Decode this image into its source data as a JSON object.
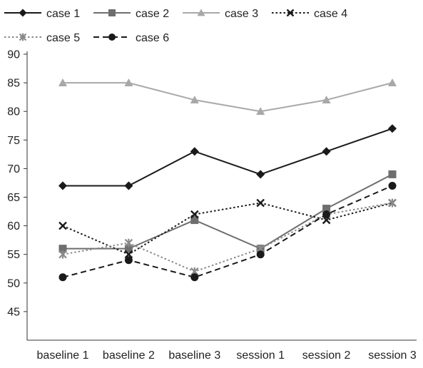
{
  "chart_data": {
    "type": "line",
    "title": "",
    "xlabel": "",
    "ylabel": "",
    "categories": [
      "baseline 1",
      "baseline 2",
      "baseline 3",
      "session 1",
      "session 2",
      "session 3"
    ],
    "yticks": [
      45,
      50,
      55,
      60,
      65,
      70,
      75,
      80,
      85,
      90
    ],
    "ylim": [
      40,
      90
    ],
    "grid": false,
    "legend_position": "top",
    "series": [
      {
        "name": "case 1",
        "values": [
          67,
          67,
          73,
          69,
          73,
          77
        ],
        "color": "#1a1a1a",
        "marker": "diamond",
        "line_style": "solid"
      },
      {
        "name": "case 2",
        "values": [
          56,
          56,
          61,
          56,
          63,
          69
        ],
        "color": "#6e6e6e",
        "marker": "square",
        "line_style": "solid"
      },
      {
        "name": "case 3",
        "values": [
          85,
          85,
          82,
          80,
          82,
          85
        ],
        "color": "#a8a8a8",
        "marker": "triangle",
        "line_style": "solid"
      },
      {
        "name": "case 4",
        "values": [
          60,
          55,
          62,
          64,
          61,
          64
        ],
        "color": "#1a1a1a",
        "marker": "x",
        "line_style": "dotted"
      },
      {
        "name": "case 5",
        "values": [
          55,
          57,
          52,
          56,
          62,
          64
        ],
        "color": "#8a8a8a",
        "marker": "star",
        "line_style": "dotted"
      },
      {
        "name": "case 6",
        "values": [
          51,
          54,
          51,
          55,
          62,
          67
        ],
        "color": "#1a1a1a",
        "marker": "circle",
        "line_style": "dashed"
      }
    ]
  }
}
